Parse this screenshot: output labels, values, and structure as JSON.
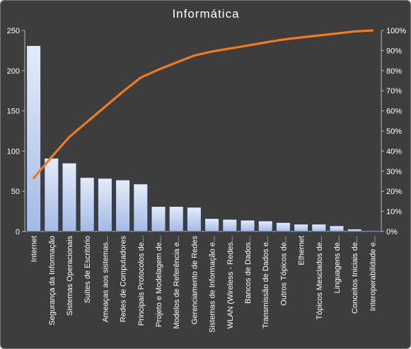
{
  "chart_data": {
    "type": "bar",
    "title": "Informática",
    "categories": [
      "Internet",
      "Segurança da Informação",
      "Sistemas Operacionais",
      "Suítes de Escritório",
      "Ameaças aos sistemas...",
      "Redes de Computadores",
      "Principais Protocolos de...",
      "Projeto e Modelagem de...",
      "Modelos de Referência e...",
      "Gerenciamento de Redes",
      "Sistemas de Informação e...",
      "WLAN (Wireless - Redes...",
      "Bancos de Dados...",
      "Transmissão de Dados e...",
      "Outros Tópicos de...",
      "Ethernet",
      "Tópicos Mesclados de...",
      "Linguagens de...",
      "Conceitos Iniciais de...",
      "Interoperabilidade e..."
    ],
    "series": [
      {
        "type": "bar",
        "values": [
          231,
          91,
          85,
          67,
          66,
          64,
          59,
          31,
          31,
          30,
          16,
          15,
          14,
          13,
          11,
          9,
          9,
          7,
          3,
          1
        ]
      },
      {
        "type": "line",
        "axis": "right",
        "values": [
          26.5,
          37,
          47,
          54.5,
          62,
          69.5,
          76.5,
          80.5,
          84,
          87.5,
          89.5,
          91,
          92.5,
          94,
          95.5,
          96.5,
          97.5,
          98.5,
          99.5,
          100
        ]
      }
    ],
    "y_left": {
      "min": 0,
      "max": 250,
      "ticks": [
        "0",
        "50",
        "100",
        "150",
        "200",
        "250"
      ]
    },
    "y_right": {
      "min": 0,
      "max": 100,
      "ticks": [
        "0%",
        "10%",
        "20%",
        "30%",
        "40%",
        "50%",
        "60%",
        "70%",
        "80%",
        "90%",
        "100%"
      ]
    },
    "colors": {
      "background": "#3d3d3d",
      "text": "#ffffff",
      "bar_top": "#e4ecf9",
      "bar_bottom": "#a3b9e6",
      "bar_stroke": "#2b3a63",
      "line": "#f07a20",
      "axis": "#b8b8b8"
    }
  }
}
